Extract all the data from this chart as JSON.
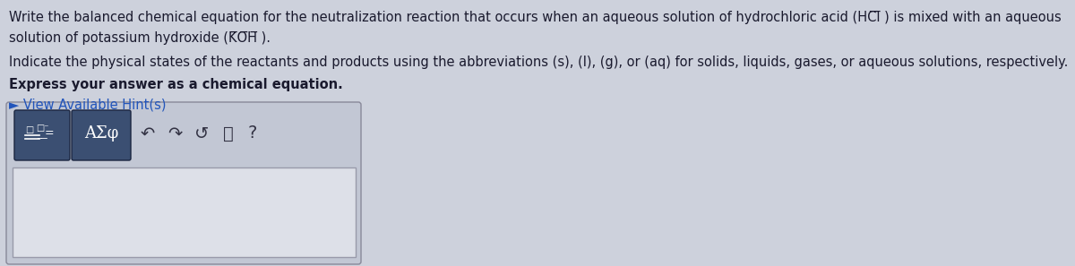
{
  "bg_color": "#cdd1dc",
  "text_color": "#1a1a2e",
  "line1": "Write the balanced chemical equation for the neutralization reaction that occurs when an aqueous solution of hydrochloric acid (HCl ) is mixed with an aqueous",
  "line2": "solution of potassium hydroxide (KOH ).",
  "line3": "Indicate the physical states of the reactants and products using the abbreviations (s), (l), (g), or (aq) for solids, liquids, gases, or aqueous solutions, respectively.",
  "line4": "Express your answer as a chemical equation.",
  "line5": "► View Available Hint(s)",
  "toolbar_label": "AΣφ",
  "question_mark": "?",
  "font_size_main": 10.5,
  "panel_bg": "#c2c7d4",
  "toolbar_btn_color": "#3b4f72",
  "input_box_bg": "#dde0e8"
}
